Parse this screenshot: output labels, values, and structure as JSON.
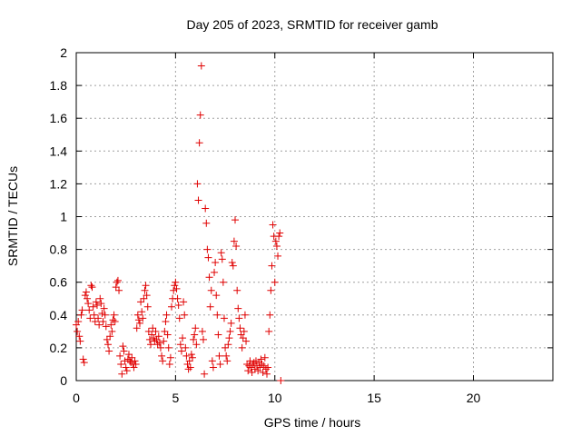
{
  "chart_data": {
    "type": "scatter",
    "title": "Day 205 of 2023, SRMTID for receiver gamb",
    "xlabel": "GPS time / hours",
    "ylabel": "SRMTID / TECUs",
    "xlim": [
      0,
      24
    ],
    "ylim": [
      0,
      2
    ],
    "xticks": [
      0,
      5,
      10,
      15,
      20
    ],
    "xtick_labels": [
      "0",
      "5",
      "10",
      "15",
      "20"
    ],
    "yticks": [
      0,
      0.2,
      0.4,
      0.6,
      0.8,
      1.0,
      1.2,
      1.4,
      1.6,
      1.8,
      2.0
    ],
    "ytick_labels": [
      "0",
      "0.2",
      "0.4",
      "0.6",
      "0.8",
      "1",
      "1.2",
      "1.4",
      "1.6",
      "1.8",
      "2"
    ],
    "grid": true,
    "marker": "+",
    "color": "#e00000",
    "series": [
      {
        "name": "gamb",
        "points": [
          [
            0.0,
            0.34
          ],
          [
            0.05,
            0.3
          ],
          [
            0.1,
            0.36
          ],
          [
            0.15,
            0.27
          ],
          [
            0.2,
            0.24
          ],
          [
            0.25,
            0.4
          ],
          [
            0.3,
            0.43
          ],
          [
            0.35,
            0.13
          ],
          [
            0.4,
            0.11
          ],
          [
            0.45,
            0.52
          ],
          [
            0.5,
            0.54
          ],
          [
            0.55,
            0.5
          ],
          [
            0.6,
            0.47
          ],
          [
            0.65,
            0.43
          ],
          [
            0.7,
            0.38
          ],
          [
            0.75,
            0.58
          ],
          [
            0.8,
            0.57
          ],
          [
            0.85,
            0.45
          ],
          [
            0.9,
            0.4
          ],
          [
            0.95,
            0.36
          ],
          [
            1.0,
            0.48
          ],
          [
            1.05,
            0.46
          ],
          [
            1.1,
            0.38
          ],
          [
            1.15,
            0.34
          ],
          [
            1.2,
            0.5
          ],
          [
            1.25,
            0.47
          ],
          [
            1.3,
            0.41
          ],
          [
            1.35,
            0.36
          ],
          [
            1.4,
            0.44
          ],
          [
            1.45,
            0.4
          ],
          [
            1.5,
            0.33
          ],
          [
            1.55,
            0.25
          ],
          [
            1.6,
            0.22
          ],
          [
            1.65,
            0.18
          ],
          [
            1.7,
            0.27
          ],
          [
            1.75,
            0.34
          ],
          [
            1.8,
            0.3
          ],
          [
            1.85,
            0.37
          ],
          [
            1.9,
            0.4
          ],
          [
            1.95,
            0.36
          ],
          [
            2.0,
            0.57
          ],
          [
            2.05,
            0.6
          ],
          [
            2.1,
            0.61
          ],
          [
            2.15,
            0.55
          ],
          [
            2.2,
            0.15
          ],
          [
            2.25,
            0.1
          ],
          [
            2.3,
            0.04
          ],
          [
            2.35,
            0.21
          ],
          [
            2.4,
            0.18
          ],
          [
            2.45,
            0.12
          ],
          [
            2.5,
            0.08
          ],
          [
            2.55,
            0.06
          ],
          [
            2.6,
            0.13
          ],
          [
            2.65,
            0.16
          ],
          [
            2.7,
            0.12
          ],
          [
            2.75,
            0.11
          ],
          [
            2.8,
            0.14
          ],
          [
            2.85,
            0.1
          ],
          [
            2.9,
            0.08
          ],
          [
            2.95,
            0.12
          ],
          [
            3.0,
            0.1
          ],
          [
            3.05,
            0.32
          ],
          [
            3.1,
            0.4
          ],
          [
            3.15,
            0.37
          ],
          [
            3.2,
            0.35
          ],
          [
            3.25,
            0.48
          ],
          [
            3.3,
            0.42
          ],
          [
            3.35,
            0.38
          ],
          [
            3.4,
            0.5
          ],
          [
            3.45,
            0.55
          ],
          [
            3.5,
            0.58
          ],
          [
            3.55,
            0.52
          ],
          [
            3.6,
            0.45
          ],
          [
            3.65,
            0.3
          ],
          [
            3.7,
            0.25
          ],
          [
            3.75,
            0.22
          ],
          [
            3.8,
            0.28
          ],
          [
            3.85,
            0.32
          ],
          [
            3.9,
            0.26
          ],
          [
            3.95,
            0.24
          ],
          [
            4.0,
            0.3
          ],
          [
            4.05,
            0.25
          ],
          [
            4.1,
            0.22
          ],
          [
            4.15,
            0.27
          ],
          [
            4.2,
            0.23
          ],
          [
            4.25,
            0.2
          ],
          [
            4.3,
            0.15
          ],
          [
            4.35,
            0.12
          ],
          [
            4.4,
            0.24
          ],
          [
            4.45,
            0.3
          ],
          [
            4.5,
            0.36
          ],
          [
            4.55,
            0.4
          ],
          [
            4.6,
            0.28
          ],
          [
            4.65,
            0.2
          ],
          [
            4.7,
            0.1
          ],
          [
            4.75,
            0.14
          ],
          [
            4.8,
            0.45
          ],
          [
            4.85,
            0.5
          ],
          [
            4.9,
            0.55
          ],
          [
            4.95,
            0.58
          ],
          [
            5.0,
            0.6
          ],
          [
            5.05,
            0.56
          ],
          [
            5.1,
            0.5
          ],
          [
            5.15,
            0.46
          ],
          [
            5.2,
            0.38
          ],
          [
            5.25,
            0.22
          ],
          [
            5.3,
            0.18
          ],
          [
            5.35,
            0.26
          ],
          [
            5.4,
            0.48
          ],
          [
            5.45,
            0.4
          ],
          [
            5.5,
            0.2
          ],
          [
            5.55,
            0.15
          ],
          [
            5.6,
            0.1
          ],
          [
            5.65,
            0.07
          ],
          [
            5.7,
            0.12
          ],
          [
            5.75,
            0.08
          ],
          [
            5.8,
            0.16
          ],
          [
            5.85,
            0.14
          ],
          [
            5.9,
            0.25
          ],
          [
            5.95,
            0.28
          ],
          [
            6.0,
            0.32
          ],
          [
            6.05,
            0.22
          ],
          [
            6.1,
            1.2
          ],
          [
            6.15,
            1.1
          ],
          [
            6.2,
            1.45
          ],
          [
            6.25,
            1.62
          ],
          [
            6.3,
            1.92
          ],
          [
            6.35,
            0.3
          ],
          [
            6.4,
            0.25
          ],
          [
            6.45,
            0.04
          ],
          [
            6.5,
            1.05
          ],
          [
            6.55,
            0.96
          ],
          [
            6.6,
            0.8
          ],
          [
            6.65,
            0.75
          ],
          [
            6.7,
            0.63
          ],
          [
            6.75,
            0.45
          ],
          [
            6.8,
            0.55
          ],
          [
            6.85,
            0.12
          ],
          [
            6.9,
            0.08
          ],
          [
            6.95,
            0.66
          ],
          [
            7.0,
            0.72
          ],
          [
            7.05,
            0.52
          ],
          [
            7.1,
            0.4
          ],
          [
            7.15,
            0.28
          ],
          [
            7.2,
            0.15
          ],
          [
            7.25,
            0.1
          ],
          [
            7.3,
            0.78
          ],
          [
            7.35,
            0.74
          ],
          [
            7.4,
            0.6
          ],
          [
            7.45,
            0.38
          ],
          [
            7.5,
            0.2
          ],
          [
            7.55,
            0.15
          ],
          [
            7.6,
            0.12
          ],
          [
            7.65,
            0.22
          ],
          [
            7.7,
            0.26
          ],
          [
            7.75,
            0.3
          ],
          [
            7.8,
            0.35
          ],
          [
            7.85,
            0.72
          ],
          [
            7.9,
            0.7
          ],
          [
            7.95,
            0.85
          ],
          [
            8.0,
            0.98
          ],
          [
            8.05,
            0.82
          ],
          [
            8.1,
            0.55
          ],
          [
            8.15,
            0.44
          ],
          [
            8.2,
            0.38
          ],
          [
            8.25,
            0.32
          ],
          [
            8.3,
            0.28
          ],
          [
            8.35,
            0.2
          ],
          [
            8.4,
            0.26
          ],
          [
            8.45,
            0.3
          ],
          [
            8.5,
            0.4
          ],
          [
            8.55,
            0.24
          ],
          [
            8.6,
            0.1
          ],
          [
            8.65,
            0.06
          ],
          [
            8.7,
            0.09
          ],
          [
            8.75,
            0.12
          ],
          [
            8.8,
            0.08
          ],
          [
            8.85,
            0.05
          ],
          [
            8.9,
            0.1
          ],
          [
            8.95,
            0.11
          ],
          [
            9.0,
            0.07
          ],
          [
            9.05,
            0.12
          ],
          [
            9.1,
            0.09
          ],
          [
            9.15,
            0.06
          ],
          [
            9.2,
            0.11
          ],
          [
            9.25,
            0.08
          ],
          [
            9.3,
            0.13
          ],
          [
            9.35,
            0.1
          ],
          [
            9.4,
            0.05
          ],
          [
            9.45,
            0.09
          ],
          [
            9.5,
            0.14
          ],
          [
            9.55,
            0.07
          ],
          [
            9.6,
            0.04
          ],
          [
            9.65,
            0.08
          ],
          [
            9.7,
            0.3
          ],
          [
            9.75,
            0.4
          ],
          [
            9.8,
            0.55
          ],
          [
            9.85,
            0.7
          ],
          [
            9.9,
            0.95
          ],
          [
            9.95,
            0.88
          ],
          [
            10.0,
            0.6
          ],
          [
            10.05,
            0.85
          ],
          [
            10.1,
            0.82
          ],
          [
            10.15,
            0.76
          ],
          [
            10.2,
            0.88
          ],
          [
            10.25,
            0.9
          ],
          [
            10.3,
            0.0
          ]
        ]
      }
    ]
  }
}
